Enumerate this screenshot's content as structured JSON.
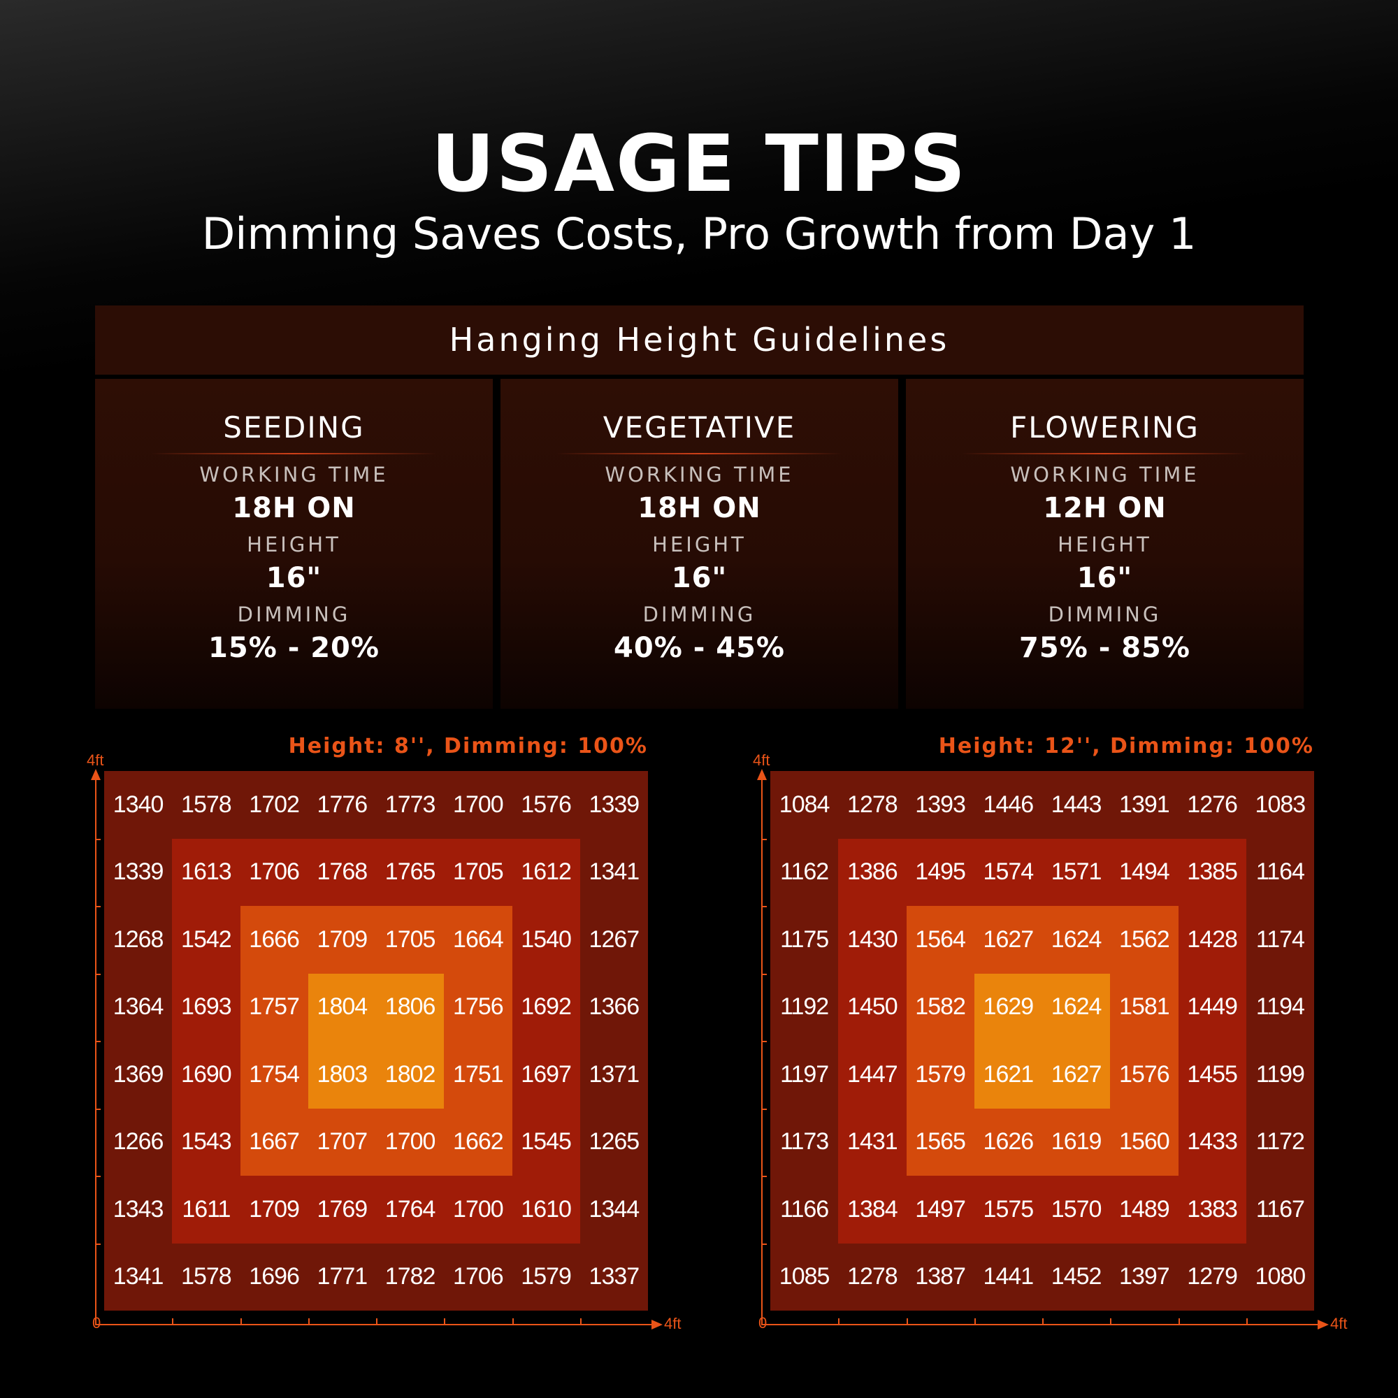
{
  "header": {
    "title": "USAGE TIPS",
    "subtitle": "Dimming Saves Costs, Pro Growth from Day 1"
  },
  "guidelines": {
    "title": "Hanging Height Guidelines",
    "stages": [
      {
        "name": "SEEDING",
        "working_time_label": "WORKING TIME",
        "working_time": "18H ON",
        "height_label": "HEIGHT",
        "height": "16\"",
        "dimming_label": "DIMMING",
        "dimming": "15% - 20%"
      },
      {
        "name": "VEGETATIVE",
        "working_time_label": "WORKING TIME",
        "working_time": "18H ON",
        "height_label": "HEIGHT",
        "height": "16\"",
        "dimming_label": "DIMMING",
        "dimming": "40% - 45%"
      },
      {
        "name": "FLOWERING",
        "working_time_label": "WORKING TIME",
        "working_time": "12H ON",
        "height_label": "HEIGHT",
        "height": "16\"",
        "dimming_label": "DIMMING",
        "dimming": "75% - 85%"
      }
    ]
  },
  "grids": [
    {
      "caption": "Height: 8'', Dimming: 100%",
      "y_axis_label": "4ft",
      "origin_label": "0",
      "x_axis_label": "4ft",
      "rows": [
        [
          1340,
          1578,
          1702,
          1776,
          1773,
          1700,
          1576,
          1339
        ],
        [
          1339,
          1613,
          1706,
          1768,
          1765,
          1705,
          1612,
          1341
        ],
        [
          1268,
          1542,
          1666,
          1709,
          1705,
          1664,
          1540,
          1267
        ],
        [
          1364,
          1693,
          1757,
          1804,
          1806,
          1756,
          1692,
          1366
        ],
        [
          1369,
          1690,
          1754,
          1803,
          1802,
          1751,
          1697,
          1371
        ],
        [
          1266,
          1543,
          1667,
          1707,
          1700,
          1662,
          1545,
          1265
        ],
        [
          1343,
          1611,
          1709,
          1769,
          1764,
          1700,
          1610,
          1344
        ],
        [
          1341,
          1578,
          1696,
          1771,
          1782,
          1706,
          1579,
          1337
        ]
      ]
    },
    {
      "caption": "Height: 12'', Dimming: 100%",
      "y_axis_label": "4ft",
      "origin_label": "0",
      "x_axis_label": "4ft",
      "rows": [
        [
          1084,
          1278,
          1393,
          1446,
          1443,
          1391,
          1276,
          1083
        ],
        [
          1162,
          1386,
          1495,
          1574,
          1571,
          1494,
          1385,
          1164
        ],
        [
          1175,
          1430,
          1564,
          1627,
          1624,
          1562,
          1428,
          1174
        ],
        [
          1192,
          1450,
          1582,
          1629,
          1624,
          1581,
          1449,
          1194
        ],
        [
          1197,
          1447,
          1579,
          1621,
          1627,
          1576,
          1455,
          1199
        ],
        [
          1173,
          1431,
          1565,
          1626,
          1619,
          1560,
          1433,
          1172
        ],
        [
          1166,
          1384,
          1497,
          1575,
          1570,
          1489,
          1383,
          1167
        ],
        [
          1085,
          1278,
          1387,
          1441,
          1452,
          1397,
          1279,
          1080
        ]
      ]
    }
  ]
}
